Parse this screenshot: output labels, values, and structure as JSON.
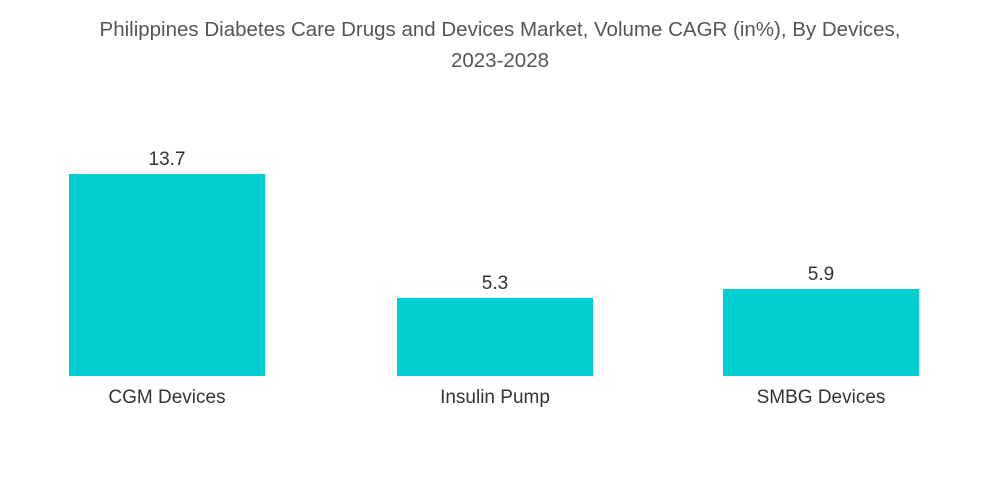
{
  "chart_data": {
    "type": "bar",
    "title_lines": [
      "Philippines Diabetes Care Drugs and Devices Market, Volume CAGR (in%), By Devices,",
      "2023-2028"
    ],
    "categories": [
      "CGM Devices",
      "Insulin Pump",
      "SMBG Devices"
    ],
    "values": [
      13.7,
      5.3,
      5.9
    ],
    "value_labels": [
      "13.7",
      "5.3",
      "5.9"
    ],
    "xlabel": "",
    "ylabel": "",
    "ylim": [
      0,
      13.7
    ],
    "grid": false,
    "legend": "none",
    "bar_color": "#00CED1"
  }
}
